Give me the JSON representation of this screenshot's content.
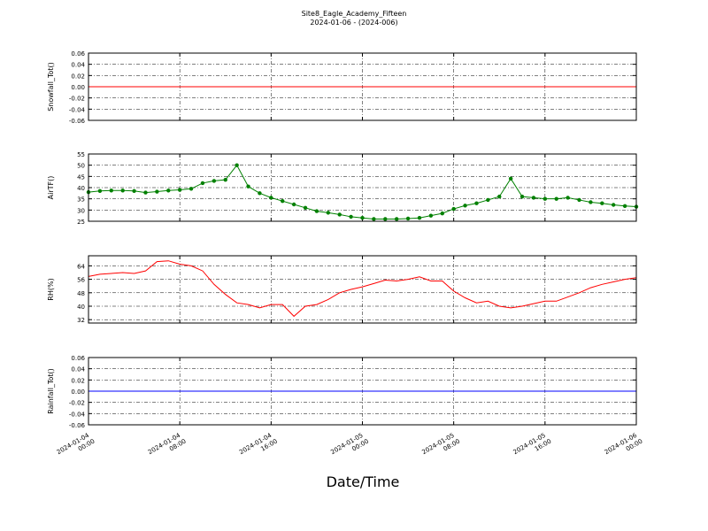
{
  "title": "Site8_Eagle_Academy_Fifteen",
  "subtitle": "2024-01-06 - (2024-006)",
  "xlabel": "Date/Time",
  "xlim": [
    "2024-01-04 00:00",
    "2024-01-06 00:00"
  ],
  "xticks": [
    "2024-01-04 00:00",
    "2024-01-04 08:00",
    "2024-01-04 16:00",
    "2024-01-05 00:00",
    "2024-01-05 08:00",
    "2024-01-05 16:00",
    "2024-01-06 00:00"
  ],
  "chart_data": [
    {
      "type": "line",
      "ylabel": "Snowfall_Tot()",
      "ylim": [
        -0.06,
        0.06
      ],
      "yticks": [
        0.06,
        0.04,
        0.02,
        {
          "value": 0,
          "label": "0.00"
        },
        -0.02,
        -0.04,
        -0.06
      ],
      "grid": true,
      "x": [
        "2024-01-04 00:00",
        "2024-01-06 00:00"
      ],
      "series": [
        {
          "color": "#ff0000",
          "values": [
            0,
            0
          ]
        }
      ]
    },
    {
      "type": "line",
      "ylabel": "AirTF()",
      "ylim": [
        25,
        55
      ],
      "yticks": [
        25,
        30,
        35,
        40,
        45,
        50,
        55
      ],
      "grid": true,
      "markers": true,
      "x": [
        "2024-01-04 00:00",
        "2024-01-04 01:00",
        "2024-01-04 02:00",
        "2024-01-04 03:00",
        "2024-01-04 04:00",
        "2024-01-04 05:00",
        "2024-01-04 06:00",
        "2024-01-04 07:00",
        "2024-01-04 08:00",
        "2024-01-04 09:00",
        "2024-01-04 10:00",
        "2024-01-04 11:00",
        "2024-01-04 12:00",
        "2024-01-04 13:00",
        "2024-01-04 14:00",
        "2024-01-04 15:00",
        "2024-01-04 16:00",
        "2024-01-04 17:00",
        "2024-01-04 18:00",
        "2024-01-04 19:00",
        "2024-01-04 20:00",
        "2024-01-04 21:00",
        "2024-01-04 22:00",
        "2024-01-04 23:00",
        "2024-01-05 00:00",
        "2024-01-05 01:00",
        "2024-01-05 02:00",
        "2024-01-05 03:00",
        "2024-01-05 04:00",
        "2024-01-05 05:00",
        "2024-01-05 06:00",
        "2024-01-05 07:00",
        "2024-01-05 08:00",
        "2024-01-05 09:00",
        "2024-01-05 10:00",
        "2024-01-05 11:00",
        "2024-01-05 12:00",
        "2024-01-05 13:00",
        "2024-01-05 14:00",
        "2024-01-05 15:00",
        "2024-01-05 16:00",
        "2024-01-05 17:00",
        "2024-01-05 18:00",
        "2024-01-05 19:00",
        "2024-01-05 20:00",
        "2024-01-05 21:00",
        "2024-01-05 22:00",
        "2024-01-05 23:00",
        "2024-01-06 00:00"
      ],
      "series": [
        {
          "color": "#008000",
          "values": [
            38,
            38.5,
            38.7,
            38.7,
            38.5,
            37.8,
            38.2,
            38.7,
            39,
            39.5,
            42,
            43,
            43.5,
            50,
            40.5,
            37.5,
            35.5,
            34,
            32.5,
            31,
            29.5,
            28.8,
            28,
            27,
            26.5,
            26,
            26,
            26,
            26.2,
            26.5,
            27.5,
            28.5,
            30.5,
            32,
            33,
            34.5,
            36,
            44,
            36,
            35.5,
            35,
            35,
            35.5,
            34.5,
            33.5,
            33,
            32.3,
            31.8,
            31.5
          ]
        }
      ]
    },
    {
      "type": "line",
      "ylabel": "RH(%)",
      "ylim": [
        30,
        70
      ],
      "yticks": [
        32,
        40,
        48,
        56,
        64
      ],
      "grid": true,
      "x": [
        "2024-01-04 00:00",
        "2024-01-04 01:00",
        "2024-01-04 02:00",
        "2024-01-04 03:00",
        "2024-01-04 04:00",
        "2024-01-04 05:00",
        "2024-01-04 06:00",
        "2024-01-04 07:00",
        "2024-01-04 08:00",
        "2024-01-04 09:00",
        "2024-01-04 10:00",
        "2024-01-04 11:00",
        "2024-01-04 12:00",
        "2024-01-04 13:00",
        "2024-01-04 14:00",
        "2024-01-04 15:00",
        "2024-01-04 16:00",
        "2024-01-04 17:00",
        "2024-01-04 18:00",
        "2024-01-04 19:00",
        "2024-01-04 20:00",
        "2024-01-04 21:00",
        "2024-01-04 22:00",
        "2024-01-04 23:00",
        "2024-01-05 00:00",
        "2024-01-05 01:00",
        "2024-01-05 02:00",
        "2024-01-05 03:00",
        "2024-01-05 04:00",
        "2024-01-05 05:00",
        "2024-01-05 06:00",
        "2024-01-05 07:00",
        "2024-01-05 08:00",
        "2024-01-05 09:00",
        "2024-01-05 10:00",
        "2024-01-05 11:00",
        "2024-01-05 12:00",
        "2024-01-05 13:00",
        "2024-01-05 14:00",
        "2024-01-05 15:00",
        "2024-01-05 16:00",
        "2024-01-05 17:00",
        "2024-01-05 18:00",
        "2024-01-05 19:00",
        "2024-01-05 20:00",
        "2024-01-05 21:00",
        "2024-01-05 22:00",
        "2024-01-05 23:00",
        "2024-01-06 00:00"
      ],
      "series": [
        {
          "color": "#ff0000",
          "values": [
            57.7,
            59,
            59.5,
            60,
            59.5,
            61,
            66.5,
            67,
            65,
            64,
            61,
            53,
            47,
            42,
            41,
            39,
            41,
            41,
            34,
            40,
            41,
            44,
            48,
            50,
            51.5,
            53.5,
            55.5,
            55,
            56,
            57.5,
            55,
            55,
            49,
            45,
            42,
            43,
            40,
            39,
            40,
            41.5,
            43,
            43,
            45.5,
            48,
            51,
            53,
            54.5,
            56,
            57
          ]
        }
      ]
    },
    {
      "type": "line",
      "ylabel": "Rainfall_Tot()",
      "ylim": [
        -0.06,
        0.06
      ],
      "yticks": [
        0.06,
        0.04,
        0.02,
        {
          "value": 0,
          "label": "0.00"
        },
        -0.02,
        -0.04,
        -0.06
      ],
      "grid": true,
      "x": [
        "2024-01-04 00:00",
        "2024-01-06 00:00"
      ],
      "series": [
        {
          "color": "#0000ff",
          "values": [
            0,
            0
          ]
        }
      ]
    }
  ]
}
